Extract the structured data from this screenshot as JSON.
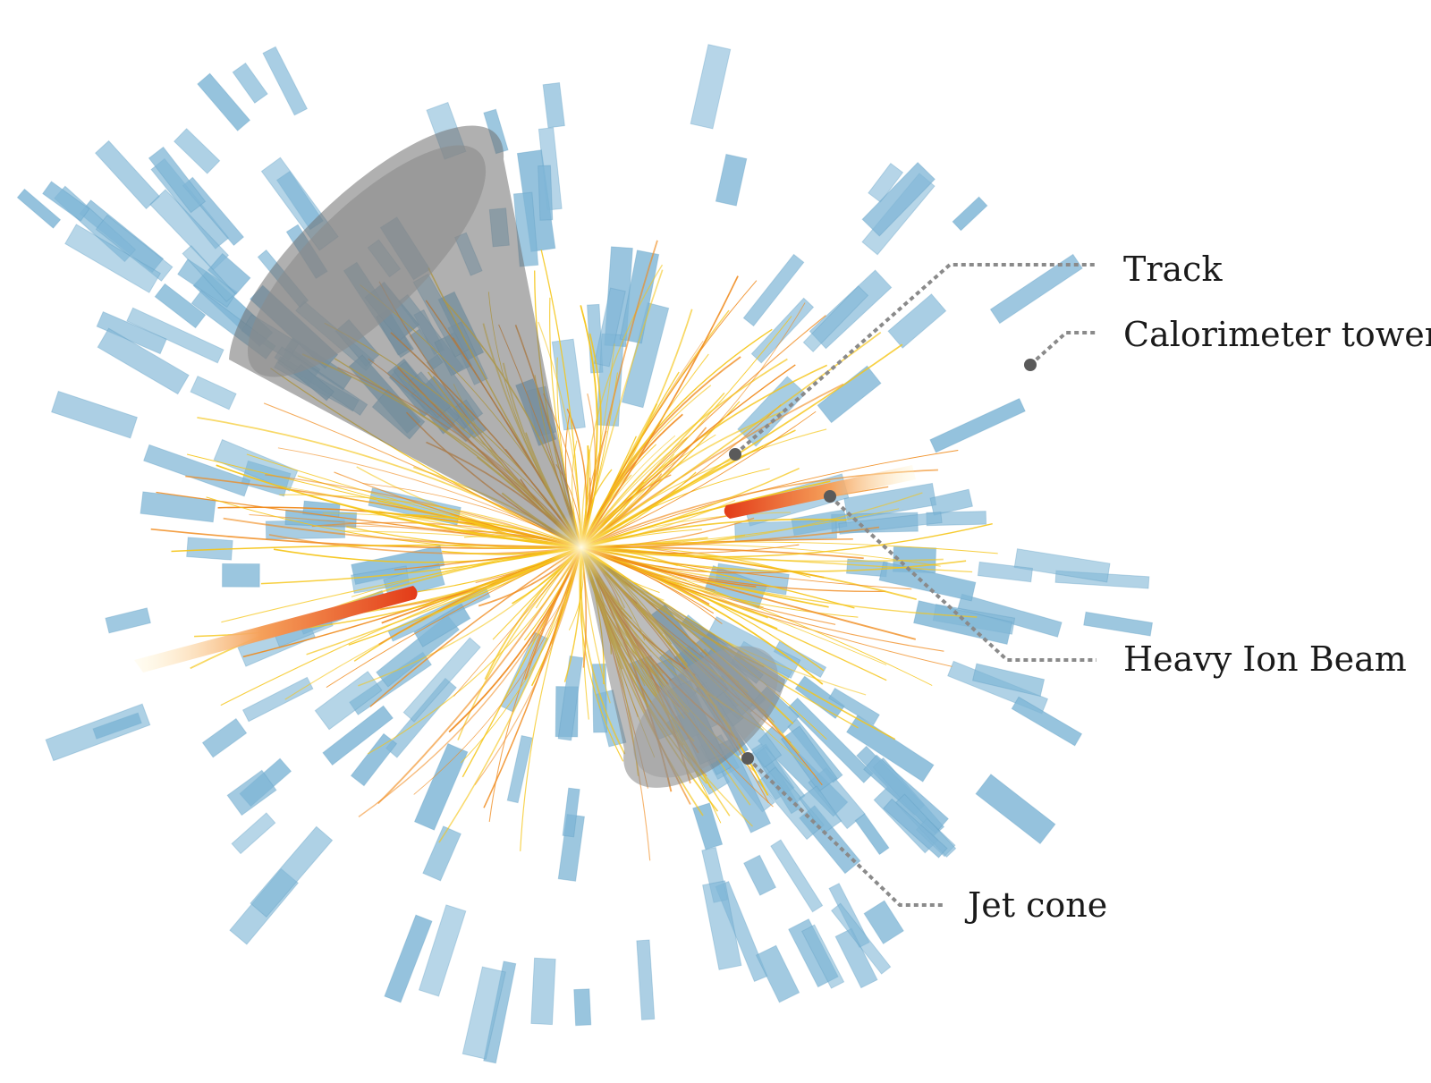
{
  "labels": {
    "track": "Track",
    "calorimeter_tower": "Calorimeter tower",
    "heavy_ion_beam": "Heavy Ion Beam",
    "jet_cone": "Jet cone"
  },
  "colors": {
    "tower": "#7fb6d6",
    "tower_edge": "#5f9fc4",
    "track_yellow": "#f5c518",
    "track_orange": "#f08a1c",
    "beam": "#e8401c",
    "cone": "#7a7a7a",
    "leader": "#8a8a8a"
  }
}
